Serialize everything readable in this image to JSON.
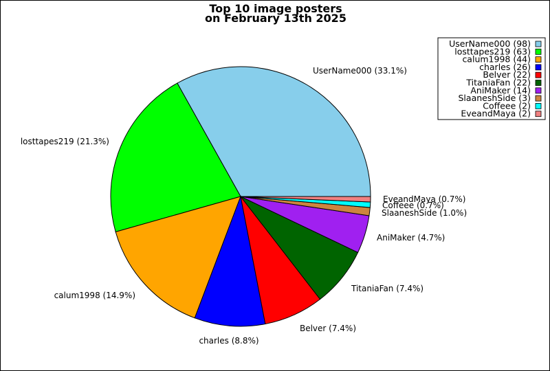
{
  "chart_data": {
    "type": "pie",
    "title": [
      "Top 10 image posters",
      "on February 13th 2025"
    ],
    "start_angle_deg": 0,
    "direction": "counterclockwise",
    "legend_position": "top-right",
    "slices": [
      {
        "name": "UserName000",
        "value": 98,
        "percent_label": "UserName000 (33.1%)",
        "legend_label": "UserName000 (98)",
        "color": "#87CEEB"
      },
      {
        "name": "losttapes219",
        "value": 63,
        "percent_label": "losttapes219 (21.3%)",
        "legend_label": "losttapes219 (63)",
        "color": "#00FF00"
      },
      {
        "name": "calum1998",
        "value": 44,
        "percent_label": "calum1998 (14.9%)",
        "legend_label": "calum1998 (44)",
        "color": "#FFA500"
      },
      {
        "name": "charles",
        "value": 26,
        "percent_label": "charles (8.8%)",
        "legend_label": "charles (26)",
        "color": "#0000FF"
      },
      {
        "name": "Belver",
        "value": 22,
        "percent_label": "Belver (7.4%)",
        "legend_label": "Belver (22)",
        "color": "#FF0000"
      },
      {
        "name": "TitaniaFan",
        "value": 22,
        "percent_label": "TitaniaFan (7.4%)",
        "legend_label": "TitaniaFan (22)",
        "color": "#006400"
      },
      {
        "name": "AniMaker",
        "value": 14,
        "percent_label": "AniMaker (4.7%)",
        "legend_label": "AniMaker (14)",
        "color": "#A020F0"
      },
      {
        "name": "SlaaneshSide",
        "value": 3,
        "percent_label": "SlaaneshSide (1.0%)",
        "legend_label": "SlaaneshSide (3)",
        "color": "#CD853F"
      },
      {
        "name": "Coffeee",
        "value": 2,
        "percent_label": "Coffeee (0.7%)",
        "legend_label": "Coffeee (2)",
        "color": "#00FFFF"
      },
      {
        "name": "EveandMaya",
        "value": 2,
        "percent_label": "EveandMaya (0.7%)",
        "legend_label": "EveandMaya (2)",
        "color": "#F08080"
      }
    ]
  }
}
